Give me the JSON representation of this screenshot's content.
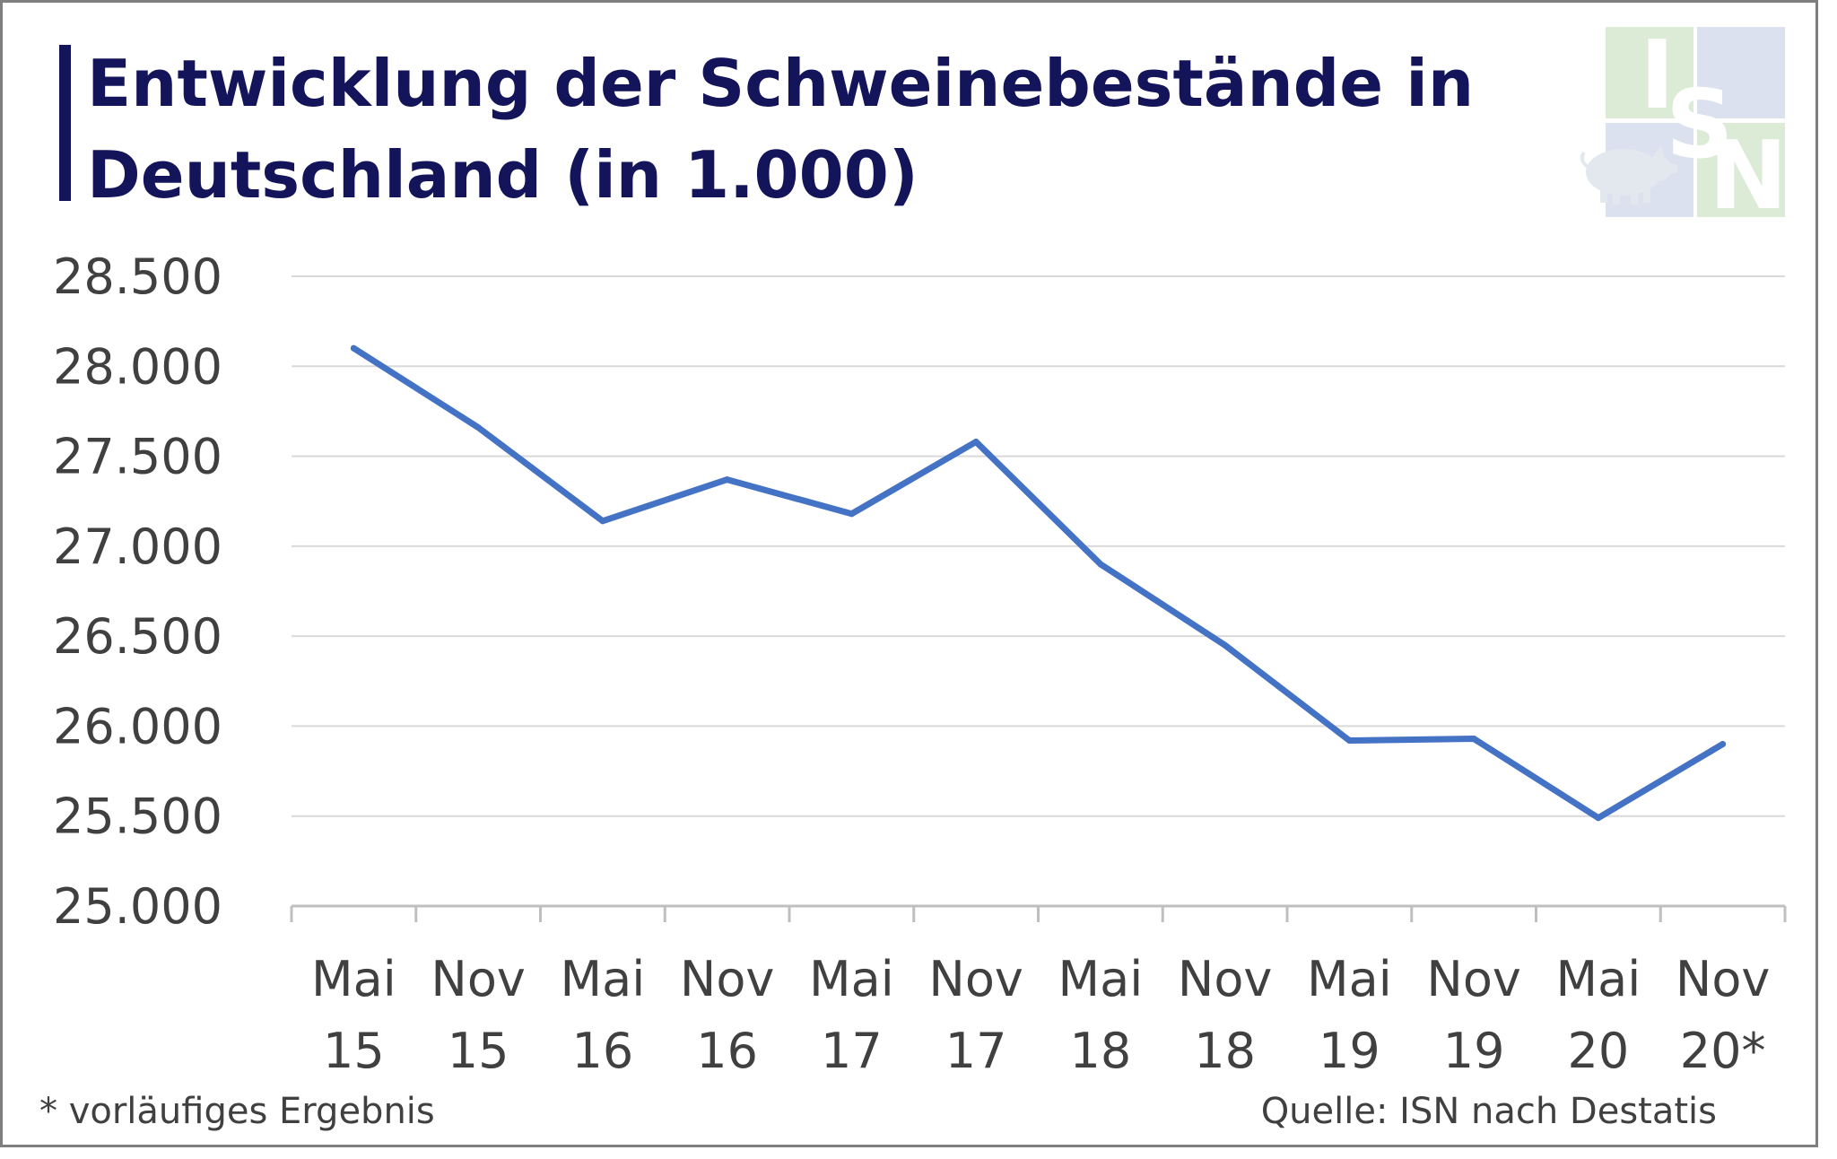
{
  "header": {
    "title_line1": "Entwicklung der Schweinebestände in",
    "title_line2": "Deutschland (in 1.000)"
  },
  "logo": {
    "text": "ISN",
    "icon": "pig-icon",
    "colors": {
      "green": "#dcebd5",
      "blue": "#dbe1ef"
    }
  },
  "footer": {
    "note": "* vorläufiges Ergebnis",
    "source": "Quelle: ISN nach Destatis"
  },
  "colors": {
    "line": "#4472c4",
    "title": "#14145a",
    "title_bar": "#14145a",
    "grid": "#d9d9d9",
    "axis": "#bfbfbf",
    "text": "#404040",
    "border": "#7f7f7f"
  },
  "chart_data": {
    "type": "line",
    "title": "Entwicklung der Schweinebestände in Deutschland (in 1.000)",
    "xlabel": "",
    "ylabel": "",
    "ylim": [
      25000,
      28500
    ],
    "yticks": [
      25000,
      25500,
      26000,
      26500,
      27000,
      27500,
      28000,
      28500
    ],
    "ytick_labels": [
      "25.000",
      "25.500",
      "26.000",
      "26.500",
      "27.000",
      "27.500",
      "28.000",
      "28.500"
    ],
    "grid": true,
    "legend": "none",
    "categories": [
      [
        "Mai",
        "15"
      ],
      [
        "Nov",
        "15"
      ],
      [
        "Mai",
        "16"
      ],
      [
        "Nov",
        "16"
      ],
      [
        "Mai",
        "17"
      ],
      [
        "Nov",
        "17"
      ],
      [
        "Mai",
        "18"
      ],
      [
        "Nov",
        "18"
      ],
      [
        "Mai",
        "19"
      ],
      [
        "Nov",
        "19"
      ],
      [
        "Mai",
        "20"
      ],
      [
        "Nov",
        "20*"
      ]
    ],
    "series": [
      {
        "values": [
          28100,
          27660,
          27140,
          27370,
          27180,
          27580,
          26900,
          26450,
          25920,
          25930,
          25490,
          25900
        ]
      }
    ]
  }
}
